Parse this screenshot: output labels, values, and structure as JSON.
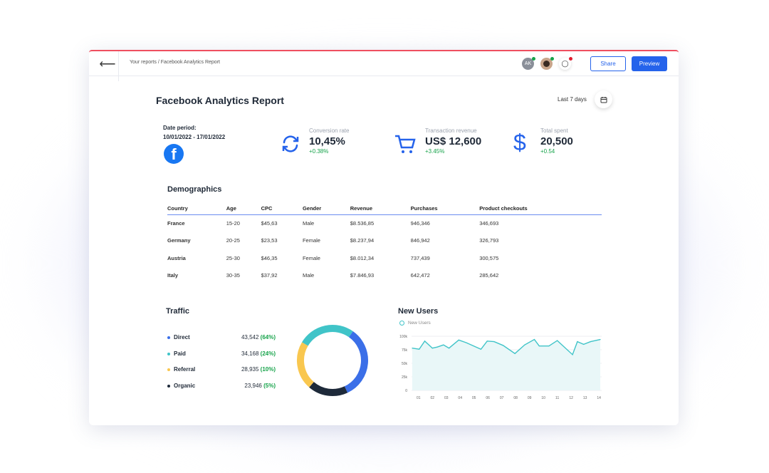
{
  "header": {
    "breadcrumb": "Your reports / Facebook Analytics Report",
    "avatar_initials": "AK",
    "share_label": "Share",
    "preview_label": "Preview"
  },
  "report": {
    "title": "Facebook Analytics Report",
    "range_label": "Last 7 days",
    "date_period_label": "Date period:",
    "date_period": "10/01/2022 - 17/01/2022"
  },
  "kpis": [
    {
      "label": "Conversion rate",
      "value": "10,45%",
      "delta": "+0.38%",
      "icon": "refresh-icon"
    },
    {
      "label": "Transaction revenue",
      "value": "US$ 12,600",
      "delta": "+3.45%",
      "icon": "cart-icon"
    },
    {
      "label": "Total spent",
      "value": "20,500",
      "delta": "+0.54",
      "icon": "dollar-icon"
    }
  ],
  "demographics": {
    "title": "Demographics",
    "columns": [
      "Country",
      "Age",
      "CPC",
      "Gender",
      "Revenue",
      "Purchases",
      "Product checkouts"
    ],
    "rows": [
      [
        "France",
        "15-20",
        "$45,63",
        "Male",
        "$8.536,85",
        "946,346",
        "346,693"
      ],
      [
        "Germany",
        "20-25",
        "$23,53",
        "Female",
        "$8.237,94",
        "846,942",
        "326,793"
      ],
      [
        "Austria",
        "25-30",
        "$46,35",
        "Female",
        "$8.012,34",
        "737,439",
        "300,575"
      ],
      [
        "Italy",
        "30-35",
        "$37,92",
        "Male",
        "$7.846,93",
        "642,472",
        "285,642"
      ]
    ]
  },
  "traffic": {
    "title": "Traffic",
    "items": [
      {
        "name": "Direct",
        "value": "43,542",
        "pct": "(64%)",
        "color": "#3b6fe8",
        "amount": 43542
      },
      {
        "name": "Paid",
        "value": "34,168",
        "pct": "(24%)",
        "color": "#40c4c8",
        "amount": 34168
      },
      {
        "name": "Referral",
        "value": "28,935",
        "pct": "(10%)",
        "color": "#f9c74f",
        "amount": 28935
      },
      {
        "name": "Organic",
        "value": "23,946",
        "pct": "(5%)",
        "color": "#1e2a3a",
        "amount": 23946
      }
    ]
  },
  "chart_data": {
    "type": "area",
    "title": "New Users",
    "series": [
      {
        "name": "New Users",
        "color": "#40c4c8",
        "x": [
          0.55,
          1.05,
          1.45,
          2.0,
          2.35,
          2.8,
          3.2,
          3.9,
          4.45,
          5.5,
          5.95,
          6.45,
          7.1,
          7.95,
          8.65,
          9.35,
          9.7,
          10.4,
          11.0,
          12.1,
          12.45,
          12.9,
          13.4,
          14.1
        ],
        "y": [
          78000,
          76000,
          91000,
          78000,
          80000,
          84000,
          78000,
          93000,
          88000,
          76000,
          91000,
          90000,
          83000,
          68000,
          84000,
          94000,
          82000,
          82000,
          92000,
          66000,
          90000,
          85000,
          90000,
          94000
        ]
      }
    ],
    "x_ticks": [
      "01",
      "02",
      "03",
      "04",
      "05",
      "06",
      "07",
      "08",
      "09",
      "10",
      "11",
      "12",
      "13",
      "14"
    ],
    "y_ticks": [
      "0",
      "25k",
      "50k",
      "75k",
      "100k"
    ],
    "ylim": [
      0,
      100000
    ],
    "grid": true
  }
}
